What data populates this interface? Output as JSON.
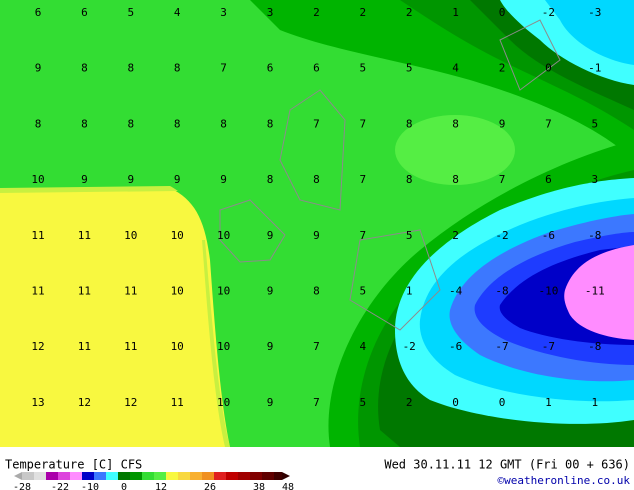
{
  "map": {
    "grid": [
      [
        6,
        6,
        5,
        4,
        3,
        3,
        2,
        2,
        2,
        1,
        0,
        -2,
        -3
      ],
      [
        9,
        8,
        8,
        8,
        7,
        6,
        6,
        5,
        5,
        4,
        2,
        0,
        -1
      ],
      [
        8,
        8,
        8,
        8,
        8,
        8,
        7,
        7,
        8,
        8,
        9,
        7,
        5
      ],
      [
        10,
        9,
        9,
        9,
        9,
        8,
        8,
        7,
        8,
        8,
        7,
        6,
        3
      ],
      [
        11,
        11,
        10,
        10,
        10,
        9,
        9,
        7,
        5,
        2,
        -2,
        -6,
        -8
      ],
      [
        11,
        11,
        11,
        10,
        10,
        9,
        8,
        5,
        1,
        -4,
        -8,
        -10,
        -11
      ],
      [
        12,
        11,
        11,
        10,
        10,
        9,
        7,
        4,
        -2,
        -6,
        -7,
        -7,
        -8
      ],
      [
        13,
        12,
        12,
        11,
        10,
        9,
        7,
        5,
        2,
        0,
        0,
        1,
        1
      ]
    ],
    "legend_title": "Temperature [C] CFS",
    "legend_labels": [
      "-28",
      "-22",
      "-10",
      "0",
      "12",
      "26",
      "38",
      "48"
    ],
    "timestamp": "Wed 30.11.11 12 GMT (Fri 00 + 636)",
    "credit": "©weatheronline.co.uk"
  }
}
